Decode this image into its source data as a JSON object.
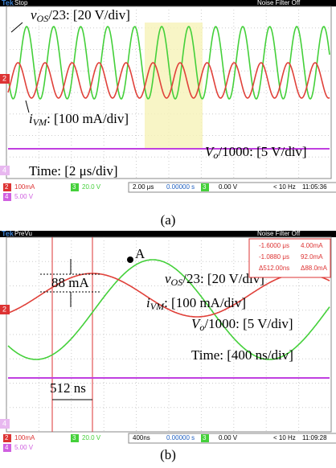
{
  "panels": [
    {
      "caption": "(a)",
      "brand": "Tek",
      "status": "Stop",
      "filter": "Noise Filter Off",
      "labels": {
        "vos": {
          "symbol": "v",
          "subscript": "OS",
          "text": "/23: [20 V/div]"
        },
        "ivm": {
          "symbol": "i",
          "subscript": "VM",
          "text": ": [100 mA/div]"
        },
        "vo": {
          "symbol": "V",
          "subscript": "o",
          "text": "/1000: [5 V/div]"
        },
        "time": "Time: [2 μs/div]"
      },
      "markers": [
        "2",
        "4"
      ],
      "footer": {
        "ch2": [
          "2",
          "100mA"
        ],
        "ch3": [
          "3",
          "20.0 V"
        ],
        "ch4": [
          "4",
          "5.00 V"
        ],
        "timebase": "2.00 μs",
        "position": "0.00000 s",
        "trigger": [
          "3",
          "0.00 V"
        ],
        "frequency": "< 10 Hz",
        "clock": "11:05:36"
      }
    },
    {
      "caption": "(b)",
      "brand": "Tek",
      "status": "PreVu",
      "filter": "Noise Filter Off",
      "labels": {
        "vos": {
          "symbol": "v",
          "subscript": "OS",
          "text": "/23: [20 V/div]"
        },
        "ivm": {
          "symbol": "i",
          "subscript": "VM",
          "text": ": [100 mA/div]"
        },
        "vo": {
          "symbol": "V",
          "subscript": "o",
          "text": "/1000: [5 V/div]"
        },
        "time": "Time: [400 ns/div]"
      },
      "markers": [
        "2",
        "4"
      ],
      "point": "A",
      "delta_current": "88 mA",
      "delta_time": "512 ns",
      "readout": [
        [
          "-1.6000 μs",
          "4.00mA"
        ],
        [
          "-1.0880 μs",
          "92.0mA"
        ],
        [
          "Δ512.00ns",
          "Δ88.0mA"
        ]
      ],
      "footer": {
        "ch2": [
          "2",
          "100mA"
        ],
        "ch3": [
          "3",
          "20.0 V"
        ],
        "ch4": [
          "4",
          "5.00 V"
        ],
        "timebase": "400ns",
        "position": "0.00000 s",
        "trigger": [
          "3",
          "0.00 V"
        ],
        "frequency": "< 10 Hz",
        "clock": "11:09:28"
      }
    }
  ]
}
